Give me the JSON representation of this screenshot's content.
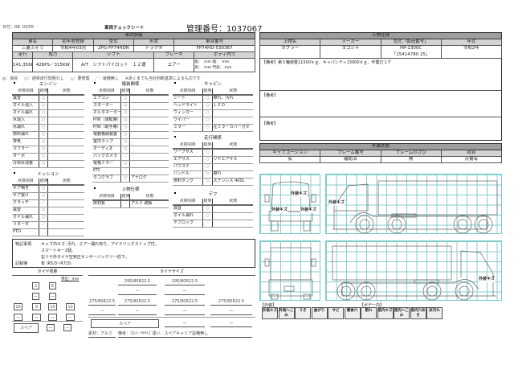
{
  "header": {
    "date": "日付：R8. 03/05",
    "title": "車両チェックシート",
    "control_no": "管理番号：1037067"
  },
  "vehicle": {
    "section": "車両情報",
    "h1": [
      "車名",
      "初年度登録",
      "型式",
      "形状",
      "車台番号"
    ],
    "v1": [
      "三菱ふそう",
      "令和4年03月",
      "2PG-FP74HDR",
      "トラクタ",
      "FP74HD-530367"
    ],
    "h2": [
      "走行",
      "馬力",
      "シフト",
      "ブレーキ",
      "ボディ内寸"
    ],
    "v2": [
      "141,356km",
      "428PS／315KW",
      "A/T　シフトパイロット　１２速",
      "エアー"
    ],
    "dims": [
      "長：",
      "mm",
      "幅：",
      "mm",
      "高：",
      "mm",
      "門高：",
      "mm"
    ]
  },
  "legend": [
    "◎：良好",
    "○：通常走行問題なし",
    "△：要修理",
    "／：装備無し",
    "※あくまでも当社判断基準によるものです"
  ],
  "col_headers": [
    "点検項目",
    "結果",
    "状態"
  ],
  "sections": {
    "engine": {
      "title": "エンジン",
      "rows": [
        [
          "異音",
          "○",
          ""
        ],
        [
          "オイル混入",
          "○",
          ""
        ],
        [
          "オイル漏れ",
          "○",
          ""
        ],
        [
          "水混入",
          "○",
          ""
        ],
        [
          "水漏れ",
          "○",
          ""
        ],
        [
          "燃料漏れ",
          "○",
          ""
        ],
        [
          "排気",
          "○",
          ""
        ],
        [
          "マフラー",
          "○",
          ""
        ],
        [
          "ターボ",
          "○",
          ""
        ],
        [
          "冷却水残量",
          "○",
          ""
        ]
      ]
    },
    "electric": {
      "title": "電装関係",
      "rows": [
        [
          "エアコン",
          "○",
          ""
        ],
        [
          "スターター",
          "○",
          ""
        ],
        [
          "オルタネーター",
          "○",
          ""
        ],
        [
          "P/W（運転席）",
          "○",
          ""
        ],
        [
          "P/W（助手席）",
          "○",
          ""
        ],
        [
          "電動格納装置",
          "○",
          ""
        ],
        [
          "室内ランプ",
          "○",
          ""
        ],
        [
          "オーディオ",
          "○",
          ""
        ],
        [
          "バックカメラ",
          "／",
          ""
        ],
        [
          "電格ミラー",
          "○",
          ""
        ],
        [
          "ETC",
          "／",
          ""
        ],
        [
          "タコグラフ",
          "○",
          "アナログ"
        ]
      ]
    },
    "cabin": {
      "title": "キャビン",
      "rows": [
        [
          "シート",
          "○",
          "擦れ、汚れ"
        ],
        [
          "ヘッドライト",
          "○",
          "ＬＥＤ"
        ],
        [
          "ウィンカー",
          "○",
          ""
        ],
        [
          "ワイパー",
          "○",
          ""
        ],
        [
          "ミラー",
          "○",
          "左ミラーカバーガタ"
        ]
      ]
    },
    "running": {
      "title": "走行関係",
      "rows": [
        [
          "リーフサス",
          "○",
          ""
        ],
        [
          "エアサス",
          "○",
          "リヤエアサス"
        ],
        [
          "パワステ",
          "○",
          ""
        ],
        [
          "ハンドル",
          "○",
          "擦れ"
        ],
        [
          "燃料タンク",
          "○",
          "ステンレス 400L"
        ]
      ]
    },
    "mission": {
      "title": "ミッション",
      "rows": [
        [
          "ギア鳴き",
          "○",
          ""
        ],
        [
          "ギア抜け",
          "○",
          ""
        ],
        [
          "クラッチ",
          "／",
          ""
        ],
        [
          "異音",
          "○",
          ""
        ],
        [
          "オイル漏れ",
          "○",
          ""
        ],
        [
          "リターダ",
          "／",
          ""
        ],
        [
          "PTO",
          "",
          ""
        ]
      ]
    },
    "body": {
      "title": "上物仕様",
      "rows": [
        [
          "床材質",
          "／",
          "アルミ 縞板"
        ]
      ]
    },
    "diff": {
      "title": "デフ",
      "rows": [
        [
          "異音",
          "○",
          ""
        ],
        [
          "オイル漏れ",
          "○",
          ""
        ],
        [
          "デフロック",
          "／",
          ""
        ]
      ]
    }
  },
  "notes": {
    "label": "特記事項",
    "lines": [
      "キャブ内キズ･汚れ、エアー漏れ有り、アイドリングストップ付。",
      "スマートキー2個。",
      "右リヤ外タイヤ空気圧センサーバッテリー低下。"
    ],
    "record_label": "記録簿",
    "record": "有 (R5/3~R7/3)"
  },
  "tire_remain": {
    "title": "タイヤ残量",
    "unit": "単位：mm",
    "front": [
      "2",
      "6"
    ],
    "front2": [
      "—",
      "—"
    ],
    "rear": [
      "10",
      "9",
      "10",
      "10"
    ],
    "rear2": [
      "—",
      "—",
      "—",
      "—"
    ],
    "spare": "スペア",
    "spare_vals": [
      "—",
      "—"
    ]
  },
  "tire_size": {
    "title": "タイヤサイズ",
    "front": [
      "295/80R22.5",
      "295/80R22.5"
    ],
    "front2": [
      "—",
      "—"
    ],
    "rear": [
      "275/80R22.5",
      "275/80R22.5",
      "275/80R22.5",
      "275/80R22.5"
    ],
    "rear2": [
      "—",
      "—",
      "—",
      "—"
    ],
    "spare": "スペア",
    "spare_vals": [
      "—",
      "—"
    ],
    "material": "素材：アルミ",
    "remark": "備考：ﾌﾛﾝﾄ･ﾘﾔｻｲｽﾞ違い、スペアキャリア設備無し"
  },
  "load": {
    "section": "上物仕様",
    "headers": [
      "上物名",
      "メーカー",
      "型式「製造番号」",
      "年式"
    ],
    "values": [
      "カプラー",
      "ヨコシャ",
      "HP-1300C",
      "令和2年"
    ],
    "serial": "「15414780 25」",
    "remarks": [
      "【備考】第５輪荷重11500ｋｇ、キャパシティ13000ｋｇ、作業灯１ケ",
      "【備考】",
      "【備考】"
    ]
  },
  "exterior": {
    "section": "外装状態",
    "headers": [
      "キャブコーション",
      "フレーム番号",
      "フレームのさび",
      "荷台"
    ],
    "values": [
      "有",
      "確認済",
      "無",
      "点傷有"
    ]
  },
  "diagram": {
    "mark": "外装キズ",
    "exterior_label": "【外装】",
    "interior_label": "【ボデー内】",
    "legend": [
      "外装キズ",
      "外装へこみ",
      "うき",
      "曲がり",
      "サビ",
      "腐食穴",
      "割れ",
      "室内キズ",
      "室内へこみ",
      "室内穴あき",
      "床汚れ"
    ]
  },
  "colors": {
    "bar": "#9e9e9e",
    "header": "#d4d4d4",
    "grid": "#88cccc"
  }
}
